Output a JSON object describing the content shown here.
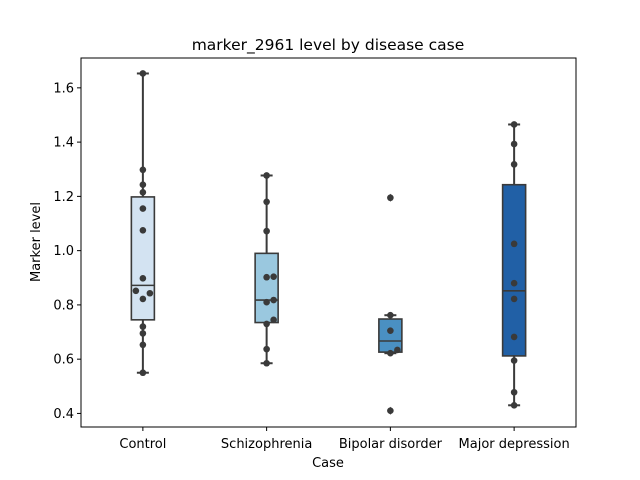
{
  "chart_data": {
    "type": "box",
    "title": "marker_2961 level by disease case",
    "xlabel": "Case",
    "ylabel": "Marker level",
    "ylim": [
      0.35,
      1.71
    ],
    "yticks": [
      0.4,
      0.6,
      0.8,
      1.0,
      1.2,
      1.4,
      1.6
    ],
    "ytick_labels": [
      "0.4",
      "0.6",
      "0.8",
      "1.0",
      "1.2",
      "1.4",
      "1.6"
    ],
    "categories": [
      "Control",
      "Schizophrenia",
      "Bipolar disorder",
      "Major depression"
    ],
    "colors": [
      "#d3e3f2",
      "#9ac8df",
      "#4a90c2",
      "#2160a6"
    ],
    "line_color": "#3a3a3a",
    "grid": false,
    "boxes": [
      {
        "whisker_low": 0.55,
        "q1": 0.745,
        "median": 0.872,
        "q3": 1.198,
        "whisker_high": 1.653,
        "outliers": []
      },
      {
        "whisker_low": 0.585,
        "q1": 0.735,
        "median": 0.818,
        "q3": 0.99,
        "whisker_high": 1.277,
        "outliers": []
      },
      {
        "whisker_low": 0.622,
        "q1": 0.626,
        "median": 0.667,
        "q3": 0.748,
        "whisker_high": 0.762,
        "outliers": [
          0.41,
          1.195
        ]
      },
      {
        "whisker_low": 0.43,
        "q1": 0.612,
        "median": 0.852,
        "q3": 1.243,
        "whisker_high": 1.465,
        "outliers": []
      }
    ],
    "points": [
      [
        0.55,
        0.653,
        0.695,
        0.72,
        0.822,
        0.843,
        0.852,
        0.898,
        1.075,
        1.155,
        1.215,
        1.243,
        1.298,
        1.653
      ],
      [
        0.585,
        0.637,
        0.73,
        0.745,
        0.81,
        0.818,
        0.902,
        0.904,
        1.072,
        1.18,
        1.277
      ],
      [
        0.41,
        0.622,
        0.634,
        0.705,
        0.762,
        1.195
      ],
      [
        0.43,
        0.478,
        0.595,
        0.682,
        0.822,
        0.88,
        1.025,
        1.318,
        1.393,
        1.465
      ]
    ]
  }
}
